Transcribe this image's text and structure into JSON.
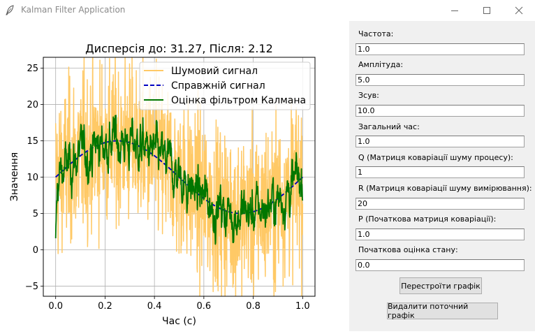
{
  "window": {
    "title": "Kalman Filter Application",
    "feather_icon": "feather-icon",
    "minimize_icon": "minimize-icon",
    "maximize_icon": "maximize-icon",
    "close_icon": "close-icon"
  },
  "params": {
    "frequency": {
      "label": "Частота:",
      "value": "1.0"
    },
    "amplitude": {
      "label": "Амплітуда:",
      "value": "5.0"
    },
    "offset": {
      "label": "Зсув:",
      "value": "10.0"
    },
    "total_time": {
      "label": "Загальний час:",
      "value": "1.0"
    },
    "q": {
      "label": "Q (Матриця коваріації шуму процесу):",
      "value": "1"
    },
    "r": {
      "label": "R (Матриця коваріації шуму вимірювання):",
      "value": "20"
    },
    "p": {
      "label": "P (Початкова матриця коваріації):",
      "value": "1.0"
    },
    "x0": {
      "label": "Початкова оцінка стану:",
      "value": "0.0"
    }
  },
  "buttons": {
    "rebuild": "Перестроїти графік",
    "delete": "Видалити поточний графік"
  },
  "chart_data": {
    "type": "line",
    "title": "Дисперсія до: 31.27, Після: 2.12",
    "xlabel": "Час (с)",
    "ylabel": "Значення",
    "xlim": [
      -0.05,
      1.05
    ],
    "ylim": [
      -6.4,
      26.5
    ],
    "xticks": [
      0.0,
      0.2,
      0.4,
      0.6,
      0.8,
      1.0
    ],
    "xtick_labels": [
      "0.0",
      "0.2",
      "0.4",
      "0.6",
      "0.8",
      "1.0"
    ],
    "yticks": [
      -5,
      0,
      5,
      10,
      15,
      20,
      25
    ],
    "ytick_labels": [
      "−5",
      "0",
      "5",
      "10",
      "15",
      "20",
      "25"
    ],
    "grid": true,
    "legend_position": "upper-right",
    "series": [
      {
        "name": "Шумовий сигнал",
        "style": "solid",
        "color": "#ffc966",
        "x_range": [
          0,
          1
        ],
        "points": 1000,
        "model": "10 + 5*sin(2*pi*t) + noise(var 31.27)"
      },
      {
        "name": "Справжній сигнал",
        "style": "dashed",
        "color": "#0000c0",
        "x_range": [
          0,
          1
        ],
        "points": 200,
        "model": "10 + 5*sin(2*pi*t)"
      },
      {
        "name": "Оцінка фільтром Калмана",
        "style": "solid",
        "color": "#007700",
        "x_range": [
          0,
          1
        ],
        "points": 1000,
        "model": "kalman(Q=1, R=20, P=1.0, x0=0.0)"
      }
    ]
  }
}
